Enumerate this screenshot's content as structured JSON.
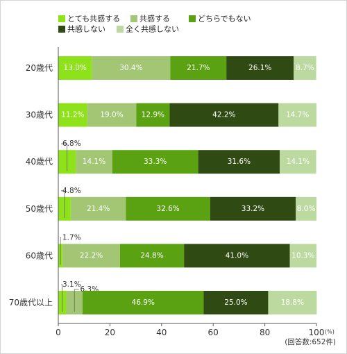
{
  "chart_data": {
    "type": "bar",
    "orientation": "horizontal",
    "stacked": true,
    "title": "",
    "xlabel": "",
    "ylabel": "",
    "xlim": [
      0,
      100
    ],
    "x_ticks": [
      "0",
      "20",
      "40",
      "60",
      "80",
      "100"
    ],
    "x_unit": "(%)",
    "note": "(回答数:652件)",
    "legend_position": "top",
    "categories": [
      "20歳代",
      "30歳代",
      "40歳代",
      "50歳代",
      "60歳代",
      "70歳代以上"
    ],
    "series": [
      {
        "name": "とても共感する",
        "color": "#8ee21a",
        "values": [
          13.0,
          11.2,
          6.8,
          4.8,
          1.7,
          3.1
        ]
      },
      {
        "name": "共感する",
        "color": "#a2c674",
        "values": [
          30.4,
          19.0,
          14.1,
          21.4,
          22.2,
          6.3
        ]
      },
      {
        "name": "どちらでもない",
        "color": "#5aa212",
        "values": [
          21.7,
          12.9,
          33.3,
          32.6,
          24.8,
          46.9
        ]
      },
      {
        "name": "共感しない",
        "color": "#2f4a12",
        "values": [
          26.1,
          42.2,
          31.6,
          33.2,
          41.0,
          25.0
        ]
      },
      {
        "name": "全く共感しない",
        "color": "#bcd9a0",
        "values": [
          8.7,
          14.7,
          14.1,
          8.0,
          10.3,
          18.8
        ]
      }
    ],
    "labels": [
      [
        "13.0%",
        "30.4%",
        "21.7%",
        "26.1%",
        "8.7%"
      ],
      [
        "11.2%",
        "19.0%",
        "12.9%",
        "42.2%",
        "14.7%"
      ],
      [
        "6.8%",
        "14.1%",
        "33.3%",
        "31.6%",
        "14.1%"
      ],
      [
        "4.8%",
        "21.4%",
        "32.6%",
        "33.2%",
        "8.0%"
      ],
      [
        "1.7%",
        "22.2%",
        "24.8%",
        "41.0%",
        "10.3%"
      ],
      [
        "3.1%",
        "6.3%",
        "46.9%",
        "25.0%",
        "18.8%"
      ]
    ],
    "callouts": [
      {
        "row": 2,
        "segment": 0
      },
      {
        "row": 3,
        "segment": 0
      },
      {
        "row": 4,
        "segment": 0
      },
      {
        "row": 5,
        "segment": 0
      },
      {
        "row": 5,
        "segment": 1
      }
    ]
  }
}
